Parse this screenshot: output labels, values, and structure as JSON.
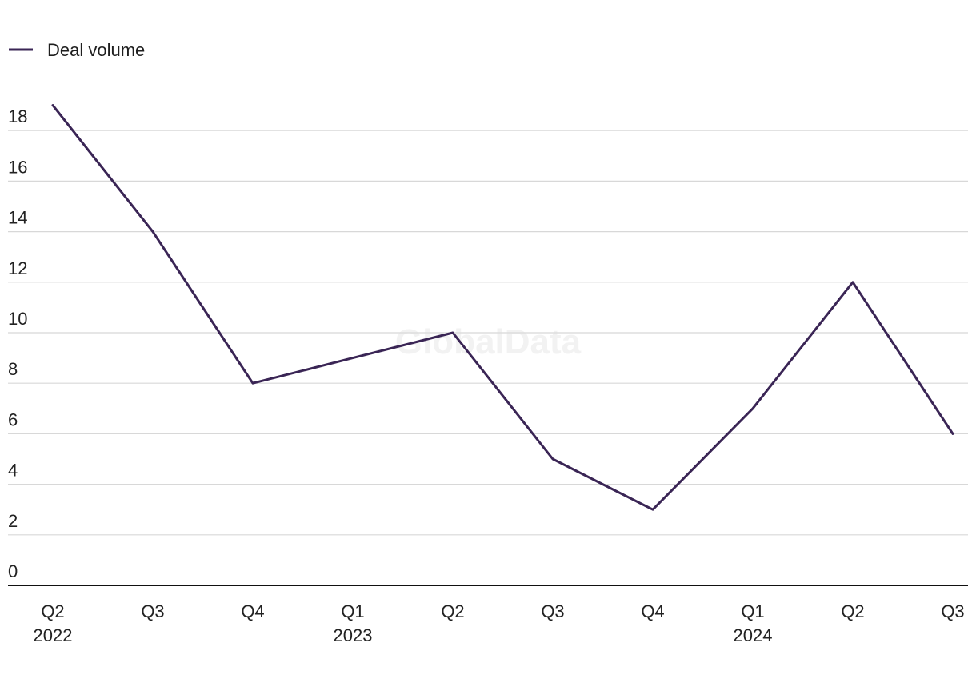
{
  "watermark": "GlobalData",
  "colors": {
    "series": "#3a2555",
    "grid": "#d8d8d8",
    "axis": "#111111",
    "text": "#222222"
  },
  "chart_data": {
    "type": "line",
    "title": "",
    "xlabel": "",
    "ylabel": "",
    "categories": [
      "Q2",
      "Q3",
      "Q4",
      "Q1",
      "Q2",
      "Q3",
      "Q4",
      "Q1",
      "Q2",
      "Q3"
    ],
    "year_labels": [
      "2022",
      "",
      "",
      "2023",
      "",
      "",
      "",
      "2024",
      "",
      ""
    ],
    "series": [
      {
        "name": "Deal volume",
        "values": [
          19,
          14,
          8,
          9,
          10,
          5,
          3,
          7,
          12,
          6
        ]
      }
    ],
    "ylim": [
      0,
      18
    ],
    "yticks": [
      "0",
      "2",
      "4",
      "6",
      "8",
      "10",
      "12",
      "14",
      "16",
      "18"
    ],
    "grid": true,
    "legend_position": "top-left"
  }
}
